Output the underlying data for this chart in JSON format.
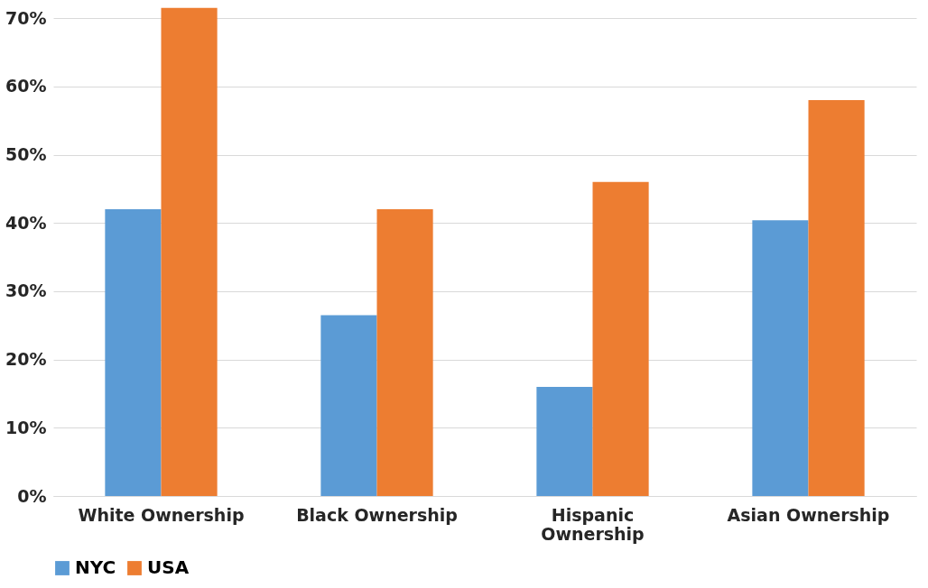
{
  "chart_data": {
    "type": "bar",
    "categories": [
      "White Ownership",
      "Black Ownership",
      "Hispanic Ownership",
      "Asian Ownership"
    ],
    "series": [
      {
        "name": "NYC",
        "color": "#5b9bd5",
        "values": [
          42,
          26.5,
          16,
          40.4
        ]
      },
      {
        "name": "USA",
        "color": "#ed7d31",
        "values": [
          71.5,
          42,
          46,
          58
        ]
      }
    ],
    "ylim": [
      0,
      72
    ],
    "yticks": [
      {
        "value": 0,
        "label": "0%"
      },
      {
        "value": 10,
        "label": "10%"
      },
      {
        "value": 20,
        "label": "20%"
      },
      {
        "value": 30,
        "label": "30%"
      },
      {
        "value": 40,
        "label": "40%"
      },
      {
        "value": 50,
        "label": "50%"
      },
      {
        "value": 60,
        "label": "60%"
      },
      {
        "value": 70,
        "label": "70%"
      }
    ],
    "grid": "y",
    "legend": "bottom"
  }
}
